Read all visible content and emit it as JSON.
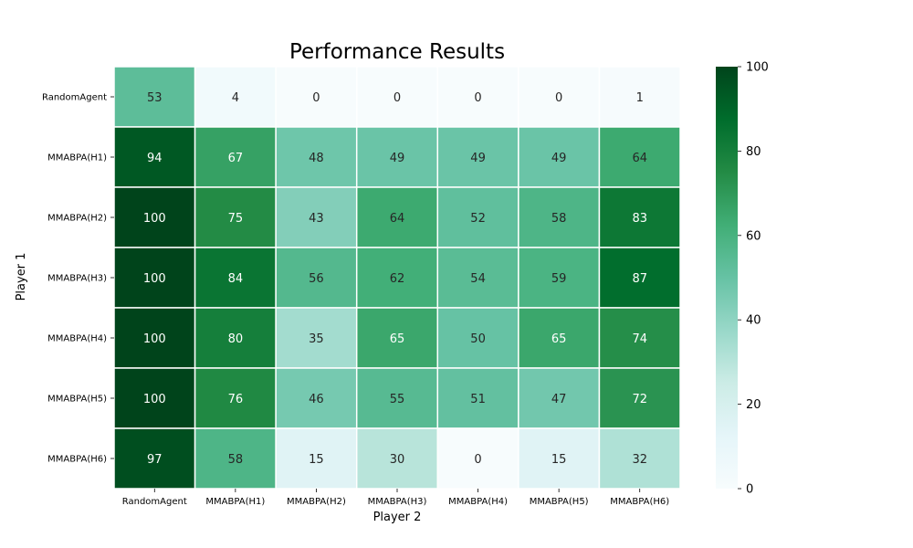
{
  "chart_data": {
    "type": "heatmap",
    "title": "Performance Results",
    "xlabel": "Player 2",
    "ylabel": "Player 1",
    "x_categories": [
      "RandomAgent",
      "MMABPA(H1)",
      "MMABPA(H2)",
      "MMABPA(H3)",
      "MMABPA(H4)",
      "MMABPA(H5)",
      "MMABPA(H6)"
    ],
    "y_categories": [
      "RandomAgent",
      "MMABPA(H1)",
      "MMABPA(H2)",
      "MMABPA(H3)",
      "MMABPA(H4)",
      "MMABPA(H5)",
      "MMABPA(H6)"
    ],
    "values": [
      [
        53,
        4,
        0,
        0,
        0,
        0,
        1
      ],
      [
        94,
        67,
        48,
        49,
        49,
        49,
        64
      ],
      [
        100,
        75,
        43,
        64,
        52,
        58,
        83
      ],
      [
        100,
        84,
        56,
        62,
        54,
        59,
        87
      ],
      [
        100,
        80,
        35,
        65,
        50,
        65,
        74
      ],
      [
        100,
        76,
        46,
        55,
        51,
        47,
        72
      ],
      [
        97,
        58,
        15,
        30,
        0,
        15,
        32
      ]
    ],
    "colorbar": {
      "range": [
        0,
        100
      ],
      "ticks": [
        0,
        20,
        40,
        60,
        80,
        100
      ],
      "colormap": "BuGn",
      "low_color": "#f7fcfd",
      "high_color": "#00441b"
    }
  }
}
